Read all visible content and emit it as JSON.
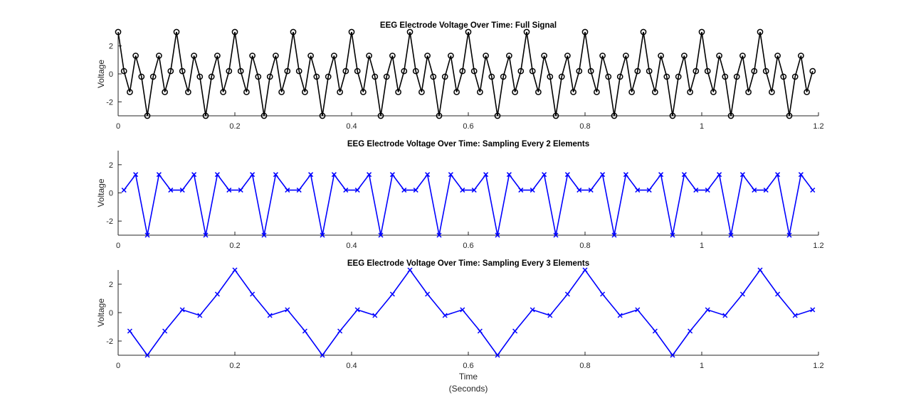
{
  "chart_data": [
    {
      "type": "line",
      "title": "EEG Electrode Voltage Over Time: Full Signal",
      "xlabel": "",
      "xlabel_units": "",
      "ylabel": "Voltage",
      "xlim": [
        0,
        1.2
      ],
      "ylim": [
        -3,
        3
      ],
      "xticks": [
        0,
        0.2,
        0.4,
        0.6,
        0.8,
        1,
        1.2
      ],
      "xtick_labels": [
        "0",
        "0.2",
        "0.4",
        "0.6",
        "0.8",
        "1",
        "1.2"
      ],
      "yticks": [
        -2,
        0,
        2
      ],
      "ytick_labels": [
        "-2",
        "0",
        "2"
      ],
      "grid": false,
      "color": "#000000",
      "marker": "circle",
      "series": [
        {
          "x": [
            0,
            0.01,
            0.02,
            0.03,
            0.04,
            0.05,
            0.06,
            0.07,
            0.08,
            0.09,
            0.1,
            0.11,
            0.12,
            0.13,
            0.14,
            0.15,
            0.16,
            0.17,
            0.18,
            0.19,
            0.2,
            0.21,
            0.22,
            0.23,
            0.24,
            0.25,
            0.26,
            0.27,
            0.28,
            0.29,
            0.3,
            0.31,
            0.32,
            0.33,
            0.34,
            0.35,
            0.36,
            0.37,
            0.38,
            0.39,
            0.4,
            0.41,
            0.42,
            0.43,
            0.44,
            0.45,
            0.46,
            0.47,
            0.48,
            0.49,
            0.5,
            0.51,
            0.52,
            0.53,
            0.54,
            0.55,
            0.56,
            0.57,
            0.58,
            0.59,
            0.6,
            0.61,
            0.62,
            0.63,
            0.64,
            0.65,
            0.66,
            0.67,
            0.68,
            0.69,
            0.7,
            0.71,
            0.72,
            0.73,
            0.74,
            0.75,
            0.76,
            0.77,
            0.78,
            0.79,
            0.8,
            0.81,
            0.82,
            0.83,
            0.84,
            0.85,
            0.86,
            0.87,
            0.88,
            0.89,
            0.9,
            0.91,
            0.92,
            0.93,
            0.94,
            0.95,
            0.96,
            0.97,
            0.98,
            0.99,
            1,
            1.01,
            1.02,
            1.03,
            1.04,
            1.05,
            1.06,
            1.07,
            1.08,
            1.09,
            1.1,
            1.11,
            1.12,
            1.13,
            1.14,
            1.15,
            1.16,
            1.17,
            1.18,
            1.19
          ],
          "y": [
            3,
            0.2,
            -1.3,
            1.3,
            -0.2,
            -3,
            -0.2,
            1.3,
            -1.3,
            0.2,
            3,
            0.2,
            -1.3,
            1.3,
            -0.2,
            -3,
            -0.2,
            1.3,
            -1.3,
            0.2,
            3,
            0.2,
            -1.3,
            1.3,
            -0.2,
            -3,
            -0.2,
            1.3,
            -1.3,
            0.2,
            3,
            0.2,
            -1.3,
            1.3,
            -0.2,
            -3,
            -0.2,
            1.3,
            -1.3,
            0.2,
            3,
            0.2,
            -1.3,
            1.3,
            -0.2,
            -3,
            -0.2,
            1.3,
            -1.3,
            0.2,
            3,
            0.2,
            -1.3,
            1.3,
            -0.2,
            -3,
            -0.2,
            1.3,
            -1.3,
            0.2,
            3,
            0.2,
            -1.3,
            1.3,
            -0.2,
            -3,
            -0.2,
            1.3,
            -1.3,
            0.2,
            3,
            0.2,
            -1.3,
            1.3,
            -0.2,
            -3,
            -0.2,
            1.3,
            -1.3,
            0.2,
            3,
            0.2,
            -1.3,
            1.3,
            -0.2,
            -3,
            -0.2,
            1.3,
            -1.3,
            0.2,
            3,
            0.2,
            -1.3,
            1.3,
            -0.2,
            -3,
            -0.2,
            1.3,
            -1.3,
            0.2,
            3,
            0.2,
            -1.3,
            1.3,
            -0.2,
            -3,
            -0.2,
            1.3,
            -1.3,
            0.2,
            3,
            0.2,
            -1.3,
            1.3,
            -0.2,
            -3,
            -0.2,
            1.3,
            -1.3,
            0.2
          ]
        }
      ]
    },
    {
      "type": "line",
      "title": "EEG Electrode Voltage Over Time: Sampling Every 2 Elements",
      "xlabel": "",
      "xlabel_units": "",
      "ylabel": "Voltage",
      "xlim": [
        0,
        1.2
      ],
      "ylim": [
        -3,
        3
      ],
      "xticks": [
        0,
        0.2,
        0.4,
        0.6,
        0.8,
        1,
        1.2
      ],
      "xtick_labels": [
        "0",
        "0.2",
        "0.4",
        "0.6",
        "0.8",
        "1",
        "1.2"
      ],
      "yticks": [
        -2,
        0,
        2
      ],
      "ytick_labels": [
        "-2",
        "0",
        "2"
      ],
      "grid": false,
      "color": "#0000ff",
      "marker": "x",
      "series": [
        {
          "x": [
            0.01,
            0.03,
            0.05,
            0.07,
            0.09,
            0.11,
            0.13,
            0.15,
            0.17,
            0.19,
            0.21,
            0.23,
            0.25,
            0.27,
            0.29,
            0.31,
            0.33,
            0.35,
            0.37,
            0.39,
            0.41,
            0.43,
            0.45,
            0.47,
            0.49,
            0.51,
            0.53,
            0.55,
            0.57,
            0.59,
            0.61,
            0.63,
            0.65,
            0.67,
            0.69,
            0.71,
            0.73,
            0.75,
            0.77,
            0.79,
            0.81,
            0.83,
            0.85,
            0.87,
            0.89,
            0.91,
            0.93,
            0.95,
            0.97,
            0.99,
            1.01,
            1.03,
            1.05,
            1.07,
            1.09,
            1.11,
            1.13,
            1.15,
            1.17,
            1.19
          ],
          "y": [
            0.2,
            1.3,
            -3,
            1.3,
            0.2,
            0.2,
            1.3,
            -3,
            1.3,
            0.2,
            0.2,
            1.3,
            -3,
            1.3,
            0.2,
            0.2,
            1.3,
            -3,
            1.3,
            0.2,
            0.2,
            1.3,
            -3,
            1.3,
            0.2,
            0.2,
            1.3,
            -3,
            1.3,
            0.2,
            0.2,
            1.3,
            -3,
            1.3,
            0.2,
            0.2,
            1.3,
            -3,
            1.3,
            0.2,
            0.2,
            1.3,
            -3,
            1.3,
            0.2,
            0.2,
            1.3,
            -3,
            1.3,
            0.2,
            0.2,
            1.3,
            -3,
            1.3,
            0.2,
            0.2,
            1.3,
            -3,
            1.3,
            0.2
          ]
        }
      ]
    },
    {
      "type": "line",
      "title": "EEG Electrode Voltage Over Time: Sampling Every 3 Elements",
      "xlabel": "Time",
      "xlabel_units": "(Seconds)",
      "ylabel": "Voltage",
      "xlim": [
        0,
        1.2
      ],
      "ylim": [
        -3,
        3
      ],
      "xticks": [
        0,
        0.2,
        0.4,
        0.6,
        0.8,
        1,
        1.2
      ],
      "xtick_labels": [
        "0",
        "0.2",
        "0.4",
        "0.6",
        "0.8",
        "1",
        "1.2"
      ],
      "yticks": [
        -2,
        0,
        2
      ],
      "ytick_labels": [
        "-2",
        "0",
        "2"
      ],
      "grid": false,
      "color": "#0000ff",
      "marker": "x",
      "series": [
        {
          "x": [
            0.02,
            0.05,
            0.08,
            0.11,
            0.14,
            0.17,
            0.2,
            0.23,
            0.26,
            0.29,
            0.32,
            0.35,
            0.38,
            0.41,
            0.44,
            0.47,
            0.5,
            0.53,
            0.56,
            0.59,
            0.62,
            0.65,
            0.68,
            0.71,
            0.74,
            0.77,
            0.8,
            0.83,
            0.86,
            0.89,
            0.92,
            0.95,
            0.98,
            1.01,
            1.04,
            1.07,
            1.1,
            1.13,
            1.16,
            1.19
          ],
          "y": [
            -1.3,
            -3,
            -1.3,
            0.2,
            -0.2,
            1.3,
            3,
            1.3,
            -0.2,
            0.2,
            -1.3,
            -3,
            -1.3,
            0.2,
            -0.2,
            1.3,
            3,
            1.3,
            -0.2,
            0.2,
            -1.3,
            -3,
            -1.3,
            0.2,
            -0.2,
            1.3,
            3,
            1.3,
            -0.2,
            0.2,
            -1.3,
            -3,
            -1.3,
            0.2,
            -0.2,
            1.3,
            3,
            1.3,
            -0.2,
            0.2
          ]
        }
      ]
    }
  ]
}
